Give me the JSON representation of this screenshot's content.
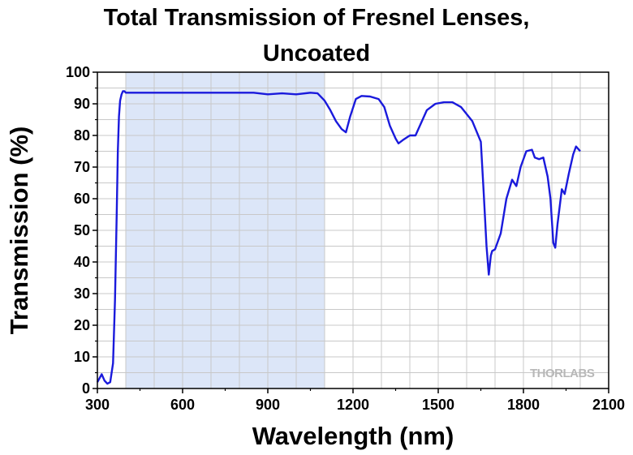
{
  "chart_data": {
    "type": "line",
    "title_line1": "Total Transmission of  Fresnel Lenses,",
    "title_line2": "Uncoated",
    "xlabel": "Wavelength (nm)",
    "ylabel": "Transmission (%)",
    "xlim": [
      300,
      2100
    ],
    "ylim": [
      0,
      100
    ],
    "x_ticks": [
      300,
      600,
      900,
      1200,
      1500,
      1800,
      2100
    ],
    "y_ticks": [
      0,
      10,
      20,
      30,
      40,
      50,
      60,
      70,
      80,
      90,
      100
    ],
    "grid": true,
    "shaded_region": [
      400,
      1100
    ],
    "line_color": "#1a1adc",
    "shade_color": "#dce6f8",
    "brand_text": "THORLABS",
    "series": [
      {
        "x": [
          300,
          315,
          325,
          335,
          345,
          355,
          362,
          368,
          372,
          376,
          380,
          385,
          390,
          395,
          400,
          430,
          500,
          600,
          700,
          800,
          850,
          900,
          950,
          1000,
          1050,
          1075,
          1100,
          1120,
          1140,
          1160,
          1175,
          1190,
          1210,
          1230,
          1260,
          1290,
          1310,
          1330,
          1350,
          1360,
          1375,
          1400,
          1420,
          1440,
          1460,
          1490,
          1520,
          1550,
          1580,
          1620,
          1650,
          1660,
          1670,
          1678,
          1685,
          1690,
          1700,
          1720,
          1740,
          1760,
          1775,
          1790,
          1810,
          1830,
          1840,
          1855,
          1870,
          1885,
          1895,
          1905,
          1912,
          1920,
          1935,
          1945,
          1960,
          1975,
          1985,
          2000
        ],
        "y": [
          2,
          4.5,
          2.5,
          1.5,
          2,
          8,
          28,
          55,
          75,
          86,
          91,
          93,
          94,
          94,
          93.5,
          93.5,
          93.5,
          93.5,
          93.5,
          93.5,
          93.5,
          93,
          93.3,
          93,
          93.5,
          93.3,
          91,
          88,
          84.5,
          82,
          81,
          86,
          91.5,
          92.5,
          92.3,
          91.5,
          89,
          83,
          79,
          77.5,
          78.5,
          80,
          80,
          84,
          88,
          90,
          90.5,
          90.5,
          89,
          84.5,
          78,
          62,
          45,
          36,
          42,
          43.5,
          44,
          49,
          60,
          66,
          64,
          70,
          75,
          75.5,
          73,
          72.5,
          73,
          67,
          60,
          46,
          44.5,
          52,
          63,
          61.5,
          68,
          74,
          76.5,
          75
        ]
      }
    ]
  }
}
